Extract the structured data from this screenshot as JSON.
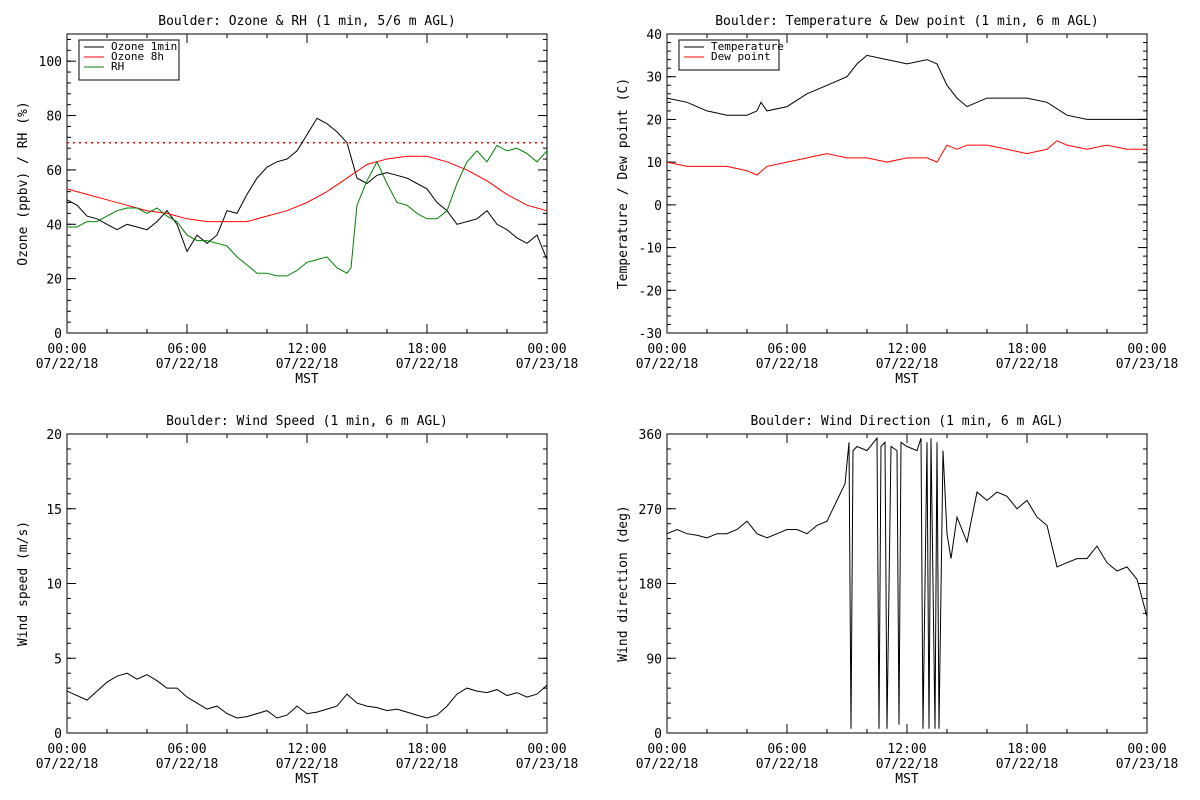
{
  "chart_data": [
    {
      "type": "line",
      "title": "Boulder: Ozone & RH (1 min, 5/6 m AGL)",
      "xlabel": "MST",
      "ylabel": "Ozone (ppbv) / RH (%)",
      "x_tick_labels": [
        [
          "00:00",
          "07/22/18"
        ],
        [
          "06:00",
          "07/22/18"
        ],
        [
          "12:00",
          "07/22/18"
        ],
        [
          "18:00",
          "07/22/18"
        ],
        [
          "00:00",
          "07/23/18"
        ]
      ],
      "xlim": [
        0,
        24
      ],
      "ylim": [
        0,
        110
      ],
      "yticks": [
        0,
        20,
        40,
        60,
        80,
        100
      ],
      "legend_position": "top-left",
      "reference_line": {
        "y": 70,
        "style": "dotted",
        "color": "#ff0000"
      },
      "series": [
        {
          "name": "Ozone 1min",
          "color": "#000000",
          "x": [
            0,
            0.5,
            1,
            1.5,
            2,
            2.5,
            3,
            3.5,
            4,
            4.5,
            5,
            5.5,
            6,
            6.5,
            7,
            7.5,
            8,
            8.5,
            9,
            9.5,
            10,
            10.5,
            11,
            11.5,
            12,
            12.5,
            13,
            13.5,
            14,
            14.5,
            15,
            15.5,
            16,
            16.5,
            17,
            17.5,
            18,
            18.5,
            19,
            19.5,
            20,
            20.5,
            21,
            21.5,
            22,
            22.5,
            23,
            23.5,
            24
          ],
          "y": [
            49,
            47,
            43,
            42,
            40,
            38,
            40,
            39,
            38,
            41,
            45,
            40,
            30,
            36,
            33,
            36,
            45,
            44,
            51,
            57,
            61,
            63,
            64,
            67,
            73,
            79,
            77,
            74,
            70,
            57,
            55,
            58,
            59,
            58,
            57,
            55,
            53,
            48,
            45,
            40,
            41,
            42,
            45,
            40,
            38,
            35,
            33,
            36,
            27
          ]
        },
        {
          "name": "Ozone 8h",
          "color": "#ff0000",
          "x": [
            0,
            1,
            2,
            3,
            4,
            5,
            6,
            7,
            8,
            9,
            10,
            11,
            12,
            13,
            14,
            15,
            16,
            17,
            18,
            19,
            20,
            21,
            22,
            23,
            24
          ],
          "y": [
            53,
            51,
            49,
            47,
            45,
            44,
            42,
            41,
            41,
            41,
            43,
            45,
            48,
            52,
            57,
            62,
            64,
            65,
            65,
            63,
            60,
            56,
            51,
            47,
            45
          ]
        },
        {
          "name": "RH",
          "color": "#008000",
          "x": [
            0,
            0.5,
            1,
            1.5,
            2,
            2.5,
            3,
            3.5,
            4,
            4.5,
            5,
            5.5,
            6,
            6.5,
            7,
            7.5,
            8,
            8.5,
            9,
            9.5,
            10,
            10.5,
            11,
            11.5,
            12,
            12.5,
            13,
            13.5,
            14,
            14.2,
            14.5,
            15,
            15.5,
            16,
            16.5,
            17,
            17.5,
            18,
            18.5,
            19,
            19.5,
            20,
            20.5,
            21,
            21.5,
            22,
            22.5,
            23,
            23.5,
            24
          ],
          "y": [
            39,
            39,
            41,
            41,
            43,
            45,
            46,
            46,
            44,
            46,
            43,
            41,
            36,
            34,
            34,
            33,
            32,
            28,
            25,
            22,
            22,
            21,
            21,
            23,
            26,
            27,
            28,
            24,
            22,
            24,
            47,
            56,
            63,
            55,
            48,
            47,
            44,
            42,
            42,
            45,
            55,
            63,
            67,
            63,
            69,
            67,
            68,
            66,
            63,
            67
          ]
        }
      ]
    },
    {
      "type": "line",
      "title": "Boulder: Temperature & Dew point (1 min, 6 m AGL)",
      "xlabel": "MST",
      "ylabel": "Temperature / Dew point (C)",
      "x_tick_labels": [
        [
          "00:00",
          "07/22/18"
        ],
        [
          "06:00",
          "07/22/18"
        ],
        [
          "12:00",
          "07/22/18"
        ],
        [
          "18:00",
          "07/22/18"
        ],
        [
          "00:00",
          "07/23/18"
        ]
      ],
      "xlim": [
        0,
        24
      ],
      "ylim": [
        -30,
        40
      ],
      "yticks": [
        -30,
        -20,
        -10,
        0,
        10,
        20,
        30,
        40
      ],
      "legend_position": "top-left",
      "series": [
        {
          "name": "Temperature",
          "color": "#000000",
          "x": [
            0,
            1,
            2,
            3,
            4,
            4.5,
            4.7,
            5,
            6,
            7,
            8,
            9,
            9.5,
            10,
            11,
            12,
            13,
            13.5,
            14,
            14.5,
            15,
            16,
            17,
            18,
            19,
            20,
            21,
            22,
            23,
            24
          ],
          "y": [
            25,
            24,
            22,
            21,
            21,
            22,
            24,
            22,
            23,
            26,
            28,
            30,
            33,
            35,
            34,
            33,
            34,
            33,
            28,
            25,
            23,
            25,
            25,
            25,
            24,
            21,
            20,
            20,
            20,
            20
          ]
        },
        {
          "name": "Dew point",
          "color": "#ff0000",
          "x": [
            0,
            1,
            2,
            3,
            4,
            4.5,
            5,
            6,
            7,
            8,
            9,
            10,
            11,
            12,
            13,
            13.5,
            14,
            14.5,
            15,
            16,
            17,
            18,
            19,
            19.5,
            20,
            21,
            22,
            23,
            24
          ],
          "y": [
            10,
            9,
            9,
            9,
            8,
            7,
            9,
            10,
            11,
            12,
            11,
            11,
            10,
            11,
            11,
            10,
            14,
            13,
            14,
            14,
            13,
            12,
            13,
            15,
            14,
            13,
            14,
            13,
            13
          ]
        }
      ]
    },
    {
      "type": "line",
      "title": "Boulder: Wind Speed (1 min, 6 m AGL)",
      "xlabel": "MST",
      "ylabel": "Wind speed (m/s)",
      "x_tick_labels": [
        [
          "00:00",
          "07/22/18"
        ],
        [
          "06:00",
          "07/22/18"
        ],
        [
          "12:00",
          "07/22/18"
        ],
        [
          "18:00",
          "07/22/18"
        ],
        [
          "00:00",
          "07/23/18"
        ]
      ],
      "xlim": [
        0,
        24
      ],
      "ylim": [
        0,
        20
      ],
      "yticks": [
        0,
        5,
        10,
        15,
        20
      ],
      "series": [
        {
          "name": "Wind speed",
          "color": "#000000",
          "x": [
            0,
            0.5,
            1,
            1.5,
            2,
            2.5,
            3,
            3.5,
            4,
            4.5,
            5,
            5.5,
            6,
            6.5,
            7,
            7.5,
            8,
            8.5,
            9,
            9.5,
            10,
            10.5,
            11,
            11.5,
            12,
            12.5,
            13,
            13.5,
            14,
            14.5,
            15,
            15.5,
            16,
            16.5,
            17,
            17.5,
            18,
            18.5,
            19,
            19.5,
            20,
            20.5,
            21,
            21.5,
            22,
            22.5,
            23,
            23.5,
            24
          ],
          "y": [
            2.8,
            2.5,
            2.2,
            2.8,
            3.4,
            3.8,
            4.0,
            3.6,
            3.9,
            3.5,
            3.0,
            3.0,
            2.4,
            2.0,
            1.6,
            1.8,
            1.3,
            1.0,
            1.1,
            1.3,
            1.5,
            1.0,
            1.2,
            1.8,
            1.3,
            1.4,
            1.6,
            1.8,
            2.6,
            2.0,
            1.8,
            1.7,
            1.5,
            1.6,
            1.4,
            1.2,
            1.0,
            1.2,
            1.8,
            2.6,
            3.0,
            2.8,
            2.7,
            2.9,
            2.5,
            2.7,
            2.4,
            2.6,
            3.2
          ]
        }
      ]
    },
    {
      "type": "line",
      "title": "Boulder: Wind Direction (1 min, 6 m AGL)",
      "xlabel": "MST",
      "ylabel": "Wind direction (deg)",
      "x_tick_labels": [
        [
          "00:00",
          "07/22/18"
        ],
        [
          "06:00",
          "07/22/18"
        ],
        [
          "12:00",
          "07/22/18"
        ],
        [
          "18:00",
          "07/22/18"
        ],
        [
          "00:00",
          "07/23/18"
        ]
      ],
      "xlim": [
        0,
        24
      ],
      "ylim": [
        0,
        360
      ],
      "yticks": [
        0,
        90,
        180,
        270,
        360
      ],
      "series": [
        {
          "name": "Wind direction",
          "color": "#000000",
          "x": [
            0,
            0.5,
            1,
            1.5,
            2,
            2.5,
            3,
            3.5,
            4,
            4.5,
            5,
            5.5,
            6,
            6.5,
            7,
            7.5,
            8,
            8.5,
            8.9,
            9.1,
            9.2,
            9.3,
            9.5,
            10,
            10.5,
            10.6,
            10.7,
            10.9,
            11,
            11.2,
            11.5,
            11.6,
            11.7,
            12,
            12.5,
            12.7,
            12.8,
            13,
            13.1,
            13.2,
            13.4,
            13.5,
            13.6,
            13.8,
            14,
            14.2,
            14.5,
            15,
            15.5,
            16,
            16.5,
            17,
            17.5,
            18,
            18.5,
            19,
            19.5,
            20,
            20.5,
            21,
            21.5,
            22,
            22.5,
            23,
            23.5,
            24
          ],
          "y": [
            240,
            245,
            240,
            238,
            235,
            240,
            240,
            245,
            255,
            240,
            235,
            240,
            245,
            245,
            240,
            250,
            255,
            280,
            300,
            350,
            5,
            340,
            345,
            340,
            355,
            5,
            345,
            350,
            5,
            345,
            340,
            10,
            350,
            345,
            340,
            355,
            5,
            350,
            5,
            355,
            5,
            350,
            5,
            340,
            240,
            210,
            260,
            230,
            290,
            280,
            290,
            285,
            270,
            280,
            260,
            250,
            200,
            205,
            210,
            210,
            225,
            205,
            195,
            200,
            185,
            140
          ]
        }
      ]
    }
  ]
}
